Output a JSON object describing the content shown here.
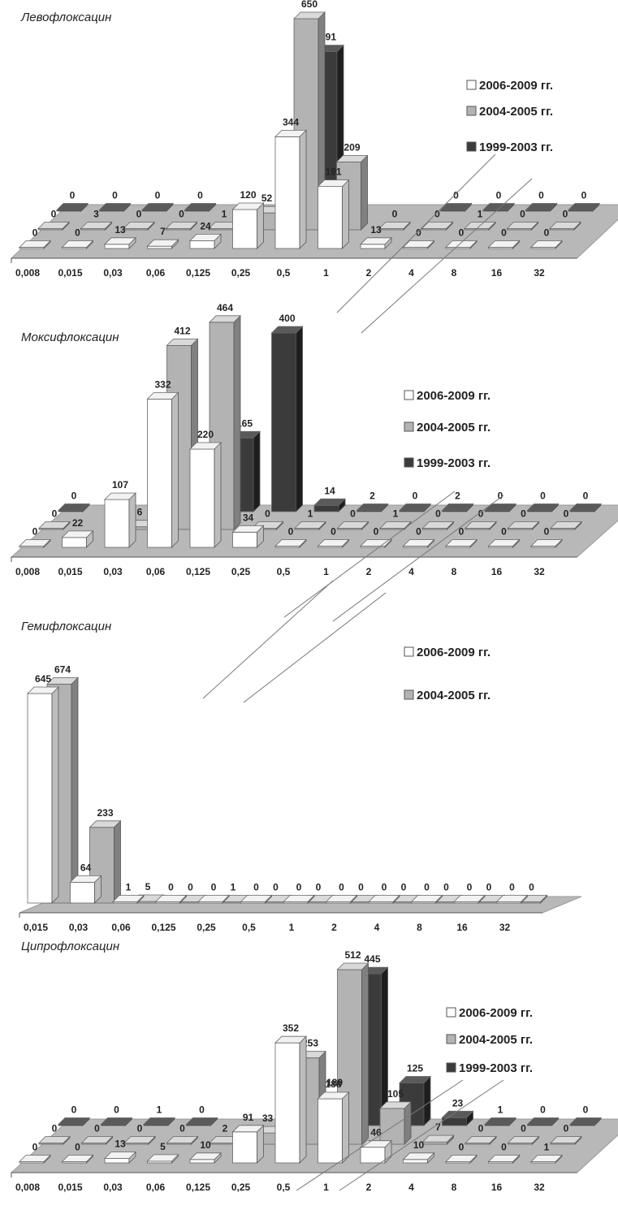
{
  "series_colors": {
    "2006-2009": {
      "front": "#ffffff",
      "top": "#f2f2f2",
      "side": "#bdbdbd"
    },
    "2004-2005": {
      "front": "#b3b3b3",
      "top": "#d9d9d9",
      "side": "#808080"
    },
    "1999-2003": {
      "front": "#3b3b3b",
      "top": "#5a5a5a",
      "side": "#1e1e1e"
    }
  },
  "chart_data": [
    {
      "type": "bar",
      "title": "Левофлоксацин",
      "categories": [
        "0,008",
        "0,015",
        "0,03",
        "0,06",
        "0,125",
        "0,25",
        "0,5",
        "1",
        "2",
        "4",
        "8",
        "16",
        "32"
      ],
      "series": [
        {
          "name": "2006-2009 гг.",
          "key": "2006-2009",
          "values": [
            0,
            0,
            13,
            7,
            24,
            120,
            344,
            191,
            13,
            0,
            0,
            0,
            0
          ]
        },
        {
          "name": "2004-2005 гг.",
          "key": "2004-2005",
          "values": [
            0,
            3,
            0,
            0,
            1,
            52,
            650,
            209,
            0,
            0,
            1,
            0,
            0
          ]
        },
        {
          "name": "1999-2003 гг.",
          "key": "1999-2003",
          "values": [
            0,
            0,
            0,
            0,
            null,
            null,
            491,
            null,
            null,
            0,
            0,
            0,
            0
          ]
        }
      ],
      "extra_labels": []
    },
    {
      "type": "bar",
      "title": "Моксифлоксацин",
      "categories": [
        "0,008",
        "0,015",
        "0,03",
        "0,06",
        "0,125",
        "0,25",
        "0,5",
        "1",
        "2",
        "4",
        "8",
        "16",
        "32"
      ],
      "series": [
        {
          "name": "2006-2009 гг.",
          "key": "2006-2009",
          "values": [
            0,
            22,
            107,
            332,
            220,
            34,
            0,
            0,
            0,
            0,
            0,
            0,
            0
          ]
        },
        {
          "name": "2004-2005 гг.",
          "key": "2004-2005",
          "values": [
            0,
            null,
            6,
            412,
            464,
            0,
            1,
            0,
            1,
            0,
            0,
            0,
            0
          ]
        },
        {
          "name": "1999-2003 гг.",
          "key": "1999-2003",
          "values": [
            0,
            null,
            null,
            null,
            165,
            400,
            14,
            2,
            0,
            2,
            0,
            0,
            0
          ]
        }
      ],
      "extra_labels": []
    },
    {
      "type": "bar",
      "title": "Гемифлоксацин",
      "categories": [
        "0,015",
        "0,03",
        "0,06",
        "0,125",
        "0,25",
        "0,5",
        "1",
        "2",
        "4",
        "8",
        "16",
        "32"
      ],
      "series": [
        {
          "name": "2006-2009 гг.",
          "key": "2006-2009",
          "values": [
            645,
            64,
            1,
            0,
            0,
            0,
            0,
            0,
            0,
            0,
            0,
            0
          ]
        },
        {
          "name": "2004-2005 гг.",
          "key": "2004-2005",
          "values": [
            674,
            233,
            5,
            0,
            1,
            0,
            0,
            0,
            0,
            0,
            0,
            0
          ]
        }
      ],
      "extra_labels": []
    },
    {
      "type": "bar",
      "title": "Ципрофлоксацин",
      "categories": [
        "0,008",
        "0,015",
        "0,03",
        "0,06",
        "0,125",
        "0,25",
        "0,5",
        "1",
        "2",
        "4",
        "8",
        "16",
        "32"
      ],
      "series": [
        {
          "name": "2006-2009 гг.",
          "key": "2006-2009",
          "values": [
            0,
            0,
            13,
            5,
            10,
            91,
            352,
            188,
            46,
            10,
            0,
            0,
            1
          ]
        },
        {
          "name": "2004-2005 гг.",
          "key": "2004-2005",
          "values": [
            0,
            0,
            0,
            0,
            2,
            33,
            253,
            512,
            105,
            7,
            0,
            0,
            0
          ]
        },
        {
          "name": "1999-2003 гг.",
          "key": "1999-2003",
          "values": [
            0,
            0,
            1,
            0,
            null,
            null,
            null,
            445,
            125,
            23,
            1,
            0,
            0
          ]
        }
      ],
      "extra_labels": [
        "189"
      ]
    }
  ]
}
